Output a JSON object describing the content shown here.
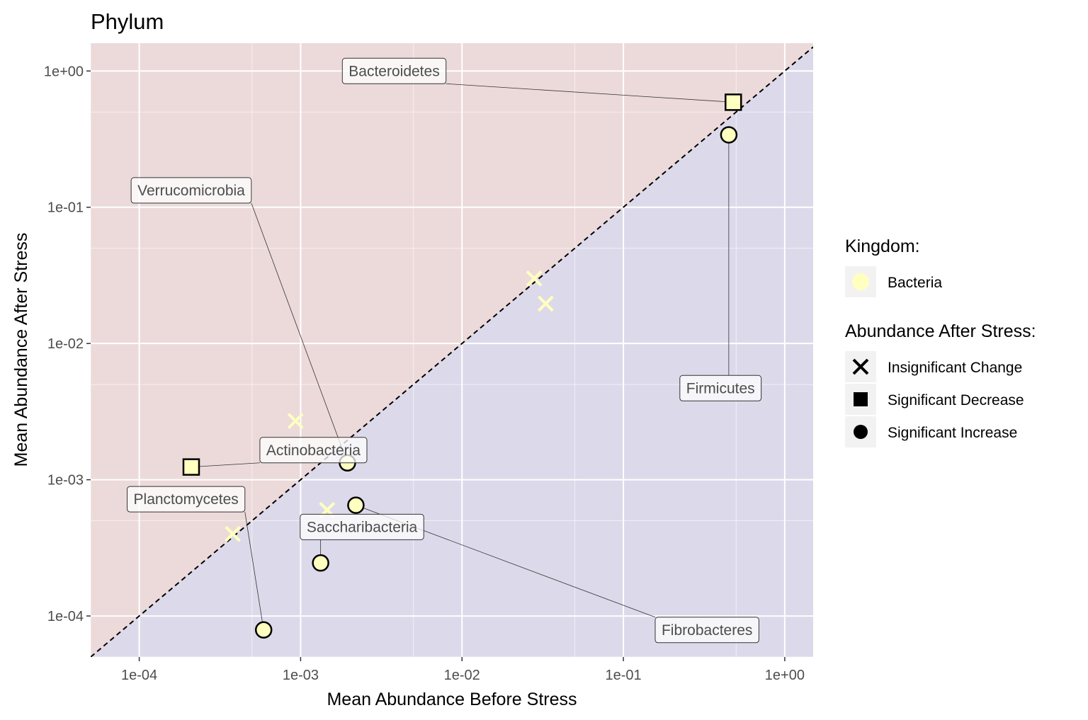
{
  "chart_data": {
    "type": "scatter",
    "title": "Phylum",
    "xlabel": "Mean Abundance Before Stress",
    "ylabel": "Mean Abundance After Stress",
    "x_scale": "log10",
    "y_scale": "log10",
    "xlim": [
      5e-05,
      1.5
    ],
    "ylim": [
      5e-05,
      1.6
    ],
    "x_ticks": [
      {
        "value": 0.0001,
        "label": "1e-04"
      },
      {
        "value": 0.001,
        "label": "1e-03"
      },
      {
        "value": 0.01,
        "label": "1e-02"
      },
      {
        "value": 0.1,
        "label": "1e-01"
      },
      {
        "value": 1,
        "label": "1e+00"
      }
    ],
    "y_ticks": [
      {
        "value": 0.0001,
        "label": "1e-04"
      },
      {
        "value": 0.001,
        "label": "1e-03"
      },
      {
        "value": 0.01,
        "label": "1e-02"
      },
      {
        "value": 0.1,
        "label": "1e-01"
      },
      {
        "value": 1,
        "label": "1e+00"
      }
    ],
    "reference_line": "y = x (dashed)",
    "region_colors": {
      "above": "#ecdada",
      "below": "#dcdaea"
    },
    "grid": true,
    "grid_color": "#ffffff",
    "point_fill": "#ffffc0",
    "point_stroke": "#000000",
    "points": [
      {
        "label": "Bacteroidetes",
        "x": 0.48,
        "y": 0.59,
        "shape": "square",
        "status": "Significant Decrease",
        "label_x": 0.0038,
        "label_y": 1.0
      },
      {
        "label": "Firmicutes",
        "x": 0.45,
        "y": 0.34,
        "shape": "circle",
        "status": "Significant Increase",
        "label_x": 0.4,
        "label_y": 0.0047
      },
      {
        "label": "Verrucomicrobia",
        "x": 0.00195,
        "y": 0.00133,
        "shape": "circle",
        "status": "Significant Increase",
        "label_x": 0.00021,
        "label_y": 0.133
      },
      {
        "label": "Actinobacteria",
        "x": 0.00021,
        "y": 0.00124,
        "shape": "square",
        "status": "Significant Decrease",
        "label_x": 0.0012,
        "label_y": 0.00165
      },
      {
        "label": "Planctomycetes",
        "x": 0.00059,
        "y": 7.9e-05,
        "shape": "circle",
        "status": "Significant Increase",
        "label_x": 0.000195,
        "label_y": 0.00072
      },
      {
        "label": "Saccharibacteria",
        "x": 0.00133,
        "y": 0.000245,
        "shape": "circle",
        "status": "Significant Increase",
        "label_x": 0.0024,
        "label_y": 0.00045
      },
      {
        "label": "Fibrobacteres",
        "x": 0.0022,
        "y": 0.00065,
        "shape": "circle",
        "status": "Significant Increase",
        "label_x": 0.33,
        "label_y": 7.9e-05
      },
      {
        "label": "",
        "x": 0.00093,
        "y": 0.0027,
        "shape": "x",
        "status": "Insignificant Change"
      },
      {
        "label": "",
        "x": 0.028,
        "y": 0.03,
        "shape": "x",
        "status": "Insignificant Change"
      },
      {
        "label": "",
        "x": 0.033,
        "y": 0.0196,
        "shape": "x",
        "status": "Insignificant Change"
      },
      {
        "label": "",
        "x": 0.00146,
        "y": 0.0006,
        "shape": "x",
        "status": "Insignificant Change"
      },
      {
        "label": "",
        "x": 0.00038,
        "y": 0.0004,
        "shape": "x",
        "status": "Insignificant Change"
      }
    ],
    "legend": {
      "placement": "right",
      "groups": [
        {
          "title": "Kingdom:",
          "items": [
            {
              "label": "Bacteria",
              "shape": "circle-filled",
              "color": "#ffffc0"
            }
          ]
        },
        {
          "title": "Abundance After Stress:",
          "items": [
            {
              "label": "Insignificant Change",
              "shape": "x"
            },
            {
              "label": "Significant Decrease",
              "shape": "square"
            },
            {
              "label": "Significant Increase",
              "shape": "circle"
            }
          ]
        }
      ]
    }
  }
}
